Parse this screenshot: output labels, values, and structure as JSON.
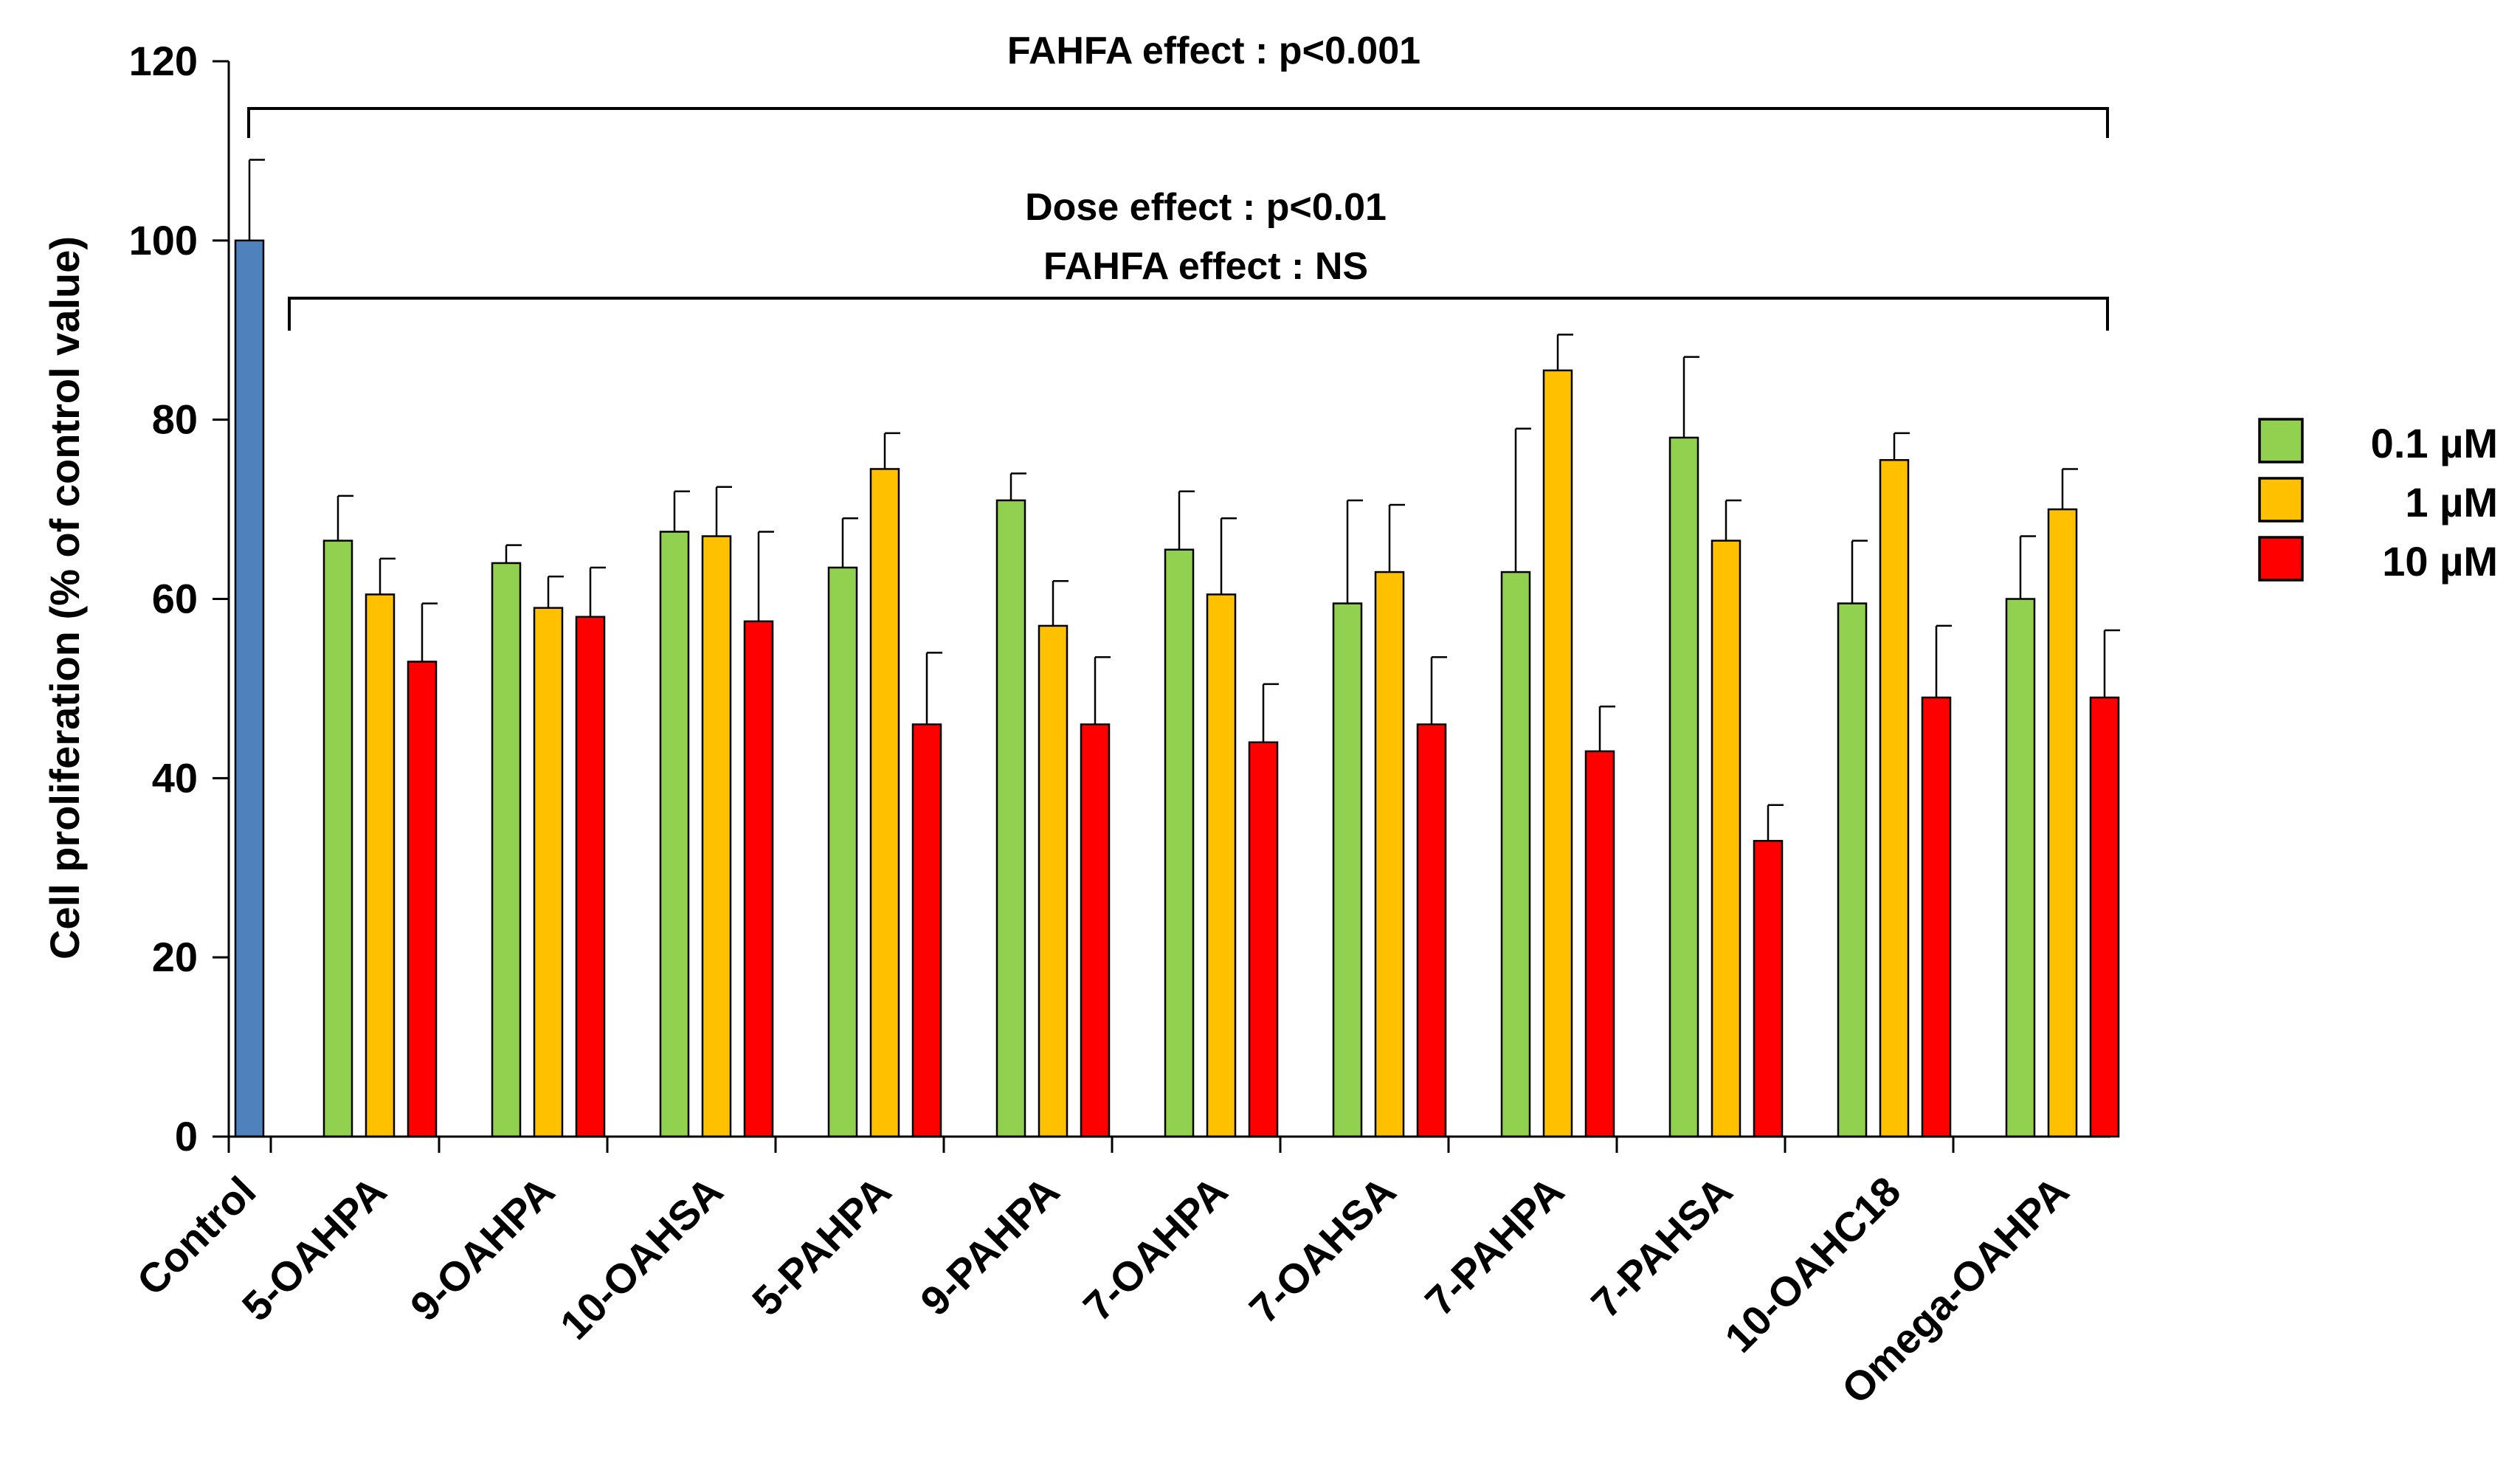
{
  "chart_data": {
    "type": "bar",
    "title": "",
    "xlabel": "",
    "ylabel": "Cell proliferation  (% of control value)",
    "ylim": [
      0,
      120
    ],
    "yticks": [
      0,
      20,
      40,
      60,
      80,
      100,
      120
    ],
    "control": {
      "name": "Control",
      "value": 100,
      "error": 9,
      "color": "#4f81bd"
    },
    "categories": [
      "5-OAHPA",
      "9-OAHPA",
      "10-OAHSA",
      "5-PAHPA",
      "9-PAHPA",
      "7-OAHPA",
      "7-OAHSA",
      "7-PAHPA",
      "7-PAHSA",
      "10-OAHC18",
      "Omega-OAHPA"
    ],
    "series": [
      {
        "name": "0.1 µM",
        "color": "#92d050",
        "values": [
          66.5,
          64,
          67.5,
          63.5,
          71,
          65.5,
          59.5,
          63,
          78,
          59.5,
          60
        ],
        "errors": [
          5,
          2,
          4.5,
          5.5,
          3,
          6.5,
          11.5,
          16,
          9,
          7,
          7
        ]
      },
      {
        "name": "1 µM",
        "color": "#ffc000",
        "values": [
          60.5,
          59,
          67,
          74.5,
          57,
          60.5,
          63,
          85.5,
          66.5,
          75.5,
          70
        ],
        "errors": [
          4,
          3.5,
          5.5,
          4,
          5,
          8.5,
          7.5,
          4,
          4.5,
          3,
          4.5
        ]
      },
      {
        "name": "10 µM",
        "color": "#ff0000",
        "values": [
          53,
          58,
          57.5,
          46,
          46,
          44,
          46,
          43,
          33,
          49,
          49
        ],
        "errors": [
          6.5,
          5.5,
          10,
          8,
          7.5,
          6.5,
          7.5,
          5,
          4,
          8,
          7.5
        ]
      }
    ],
    "annotations": {
      "top_bracket": "FAHFA effect : p<0.001",
      "inner_bracket_line1": "Dose effect : p<0.01",
      "inner_bracket_line2": "FAHFA effect : NS"
    },
    "legend_position": "right"
  }
}
